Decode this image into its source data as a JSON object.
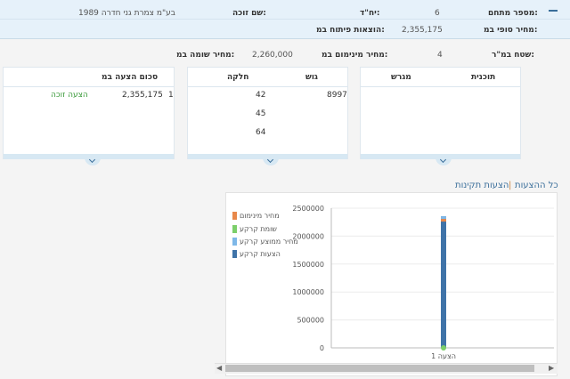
{
  "header": {
    "tender_number_label": "מספר מתחם:",
    "tender_number_value": "6",
    "units_label": "יח\"ד:",
    "winner_label": "שם זוכה:",
    "winner_value": "בע\"מ צמרת גני חדרה 1989",
    "final_price_label": "מחיר סופי במ:",
    "final_price_value": "2,355,175",
    "dev_cost_label": "הוצאות פיתוח במ:"
  },
  "summary": {
    "area_label": "שטח במ\"ר:",
    "area_value": "4",
    "min_price_label": "מחיר מינימום במ:",
    "min_price_value": "2,260,000",
    "appraiser_label": "מחיר שומה במ:"
  },
  "cards": {
    "plans": {
      "col1": "תוכנית",
      "col2": "מגרש"
    },
    "blocks": {
      "col1": "גוש",
      "col2": "חלקה",
      "gush": "8997",
      "helkot": [
        "42",
        "45",
        "64"
      ]
    },
    "bids": {
      "col1": "סכום הצעה במ",
      "row_index": "1",
      "row_amount": "2,355,175",
      "row_status": "הצעה זוכה"
    }
  },
  "tabs": {
    "all": "כל ההצעות",
    "valid": "הצעות תקינות"
  },
  "colors": {
    "accent": "#3a6e9a",
    "win": "#3a9a3a",
    "header_bg": "#e6f1fa"
  },
  "chart_data": {
    "type": "bar",
    "categories": [
      "הצעה 1"
    ],
    "ylim": [
      0,
      2500000
    ],
    "yticks": [
      "0",
      "500000",
      "1000000",
      "1500000",
      "2000000",
      "2500000"
    ],
    "series": [
      {
        "name": "מחיר מינימום",
        "color": "#e8884a",
        "values": [
          2260000
        ]
      },
      {
        "name": "שומת קרקע",
        "color": "#7ccf6a",
        "values": [
          0
        ]
      },
      {
        "name": "מחיר ממוצע קרקע",
        "color": "#7fb8e8",
        "values": [
          2355175
        ]
      },
      {
        "name": "הצעות קרקע",
        "color": "#3f73a8",
        "values": [
          2355175
        ]
      }
    ]
  }
}
